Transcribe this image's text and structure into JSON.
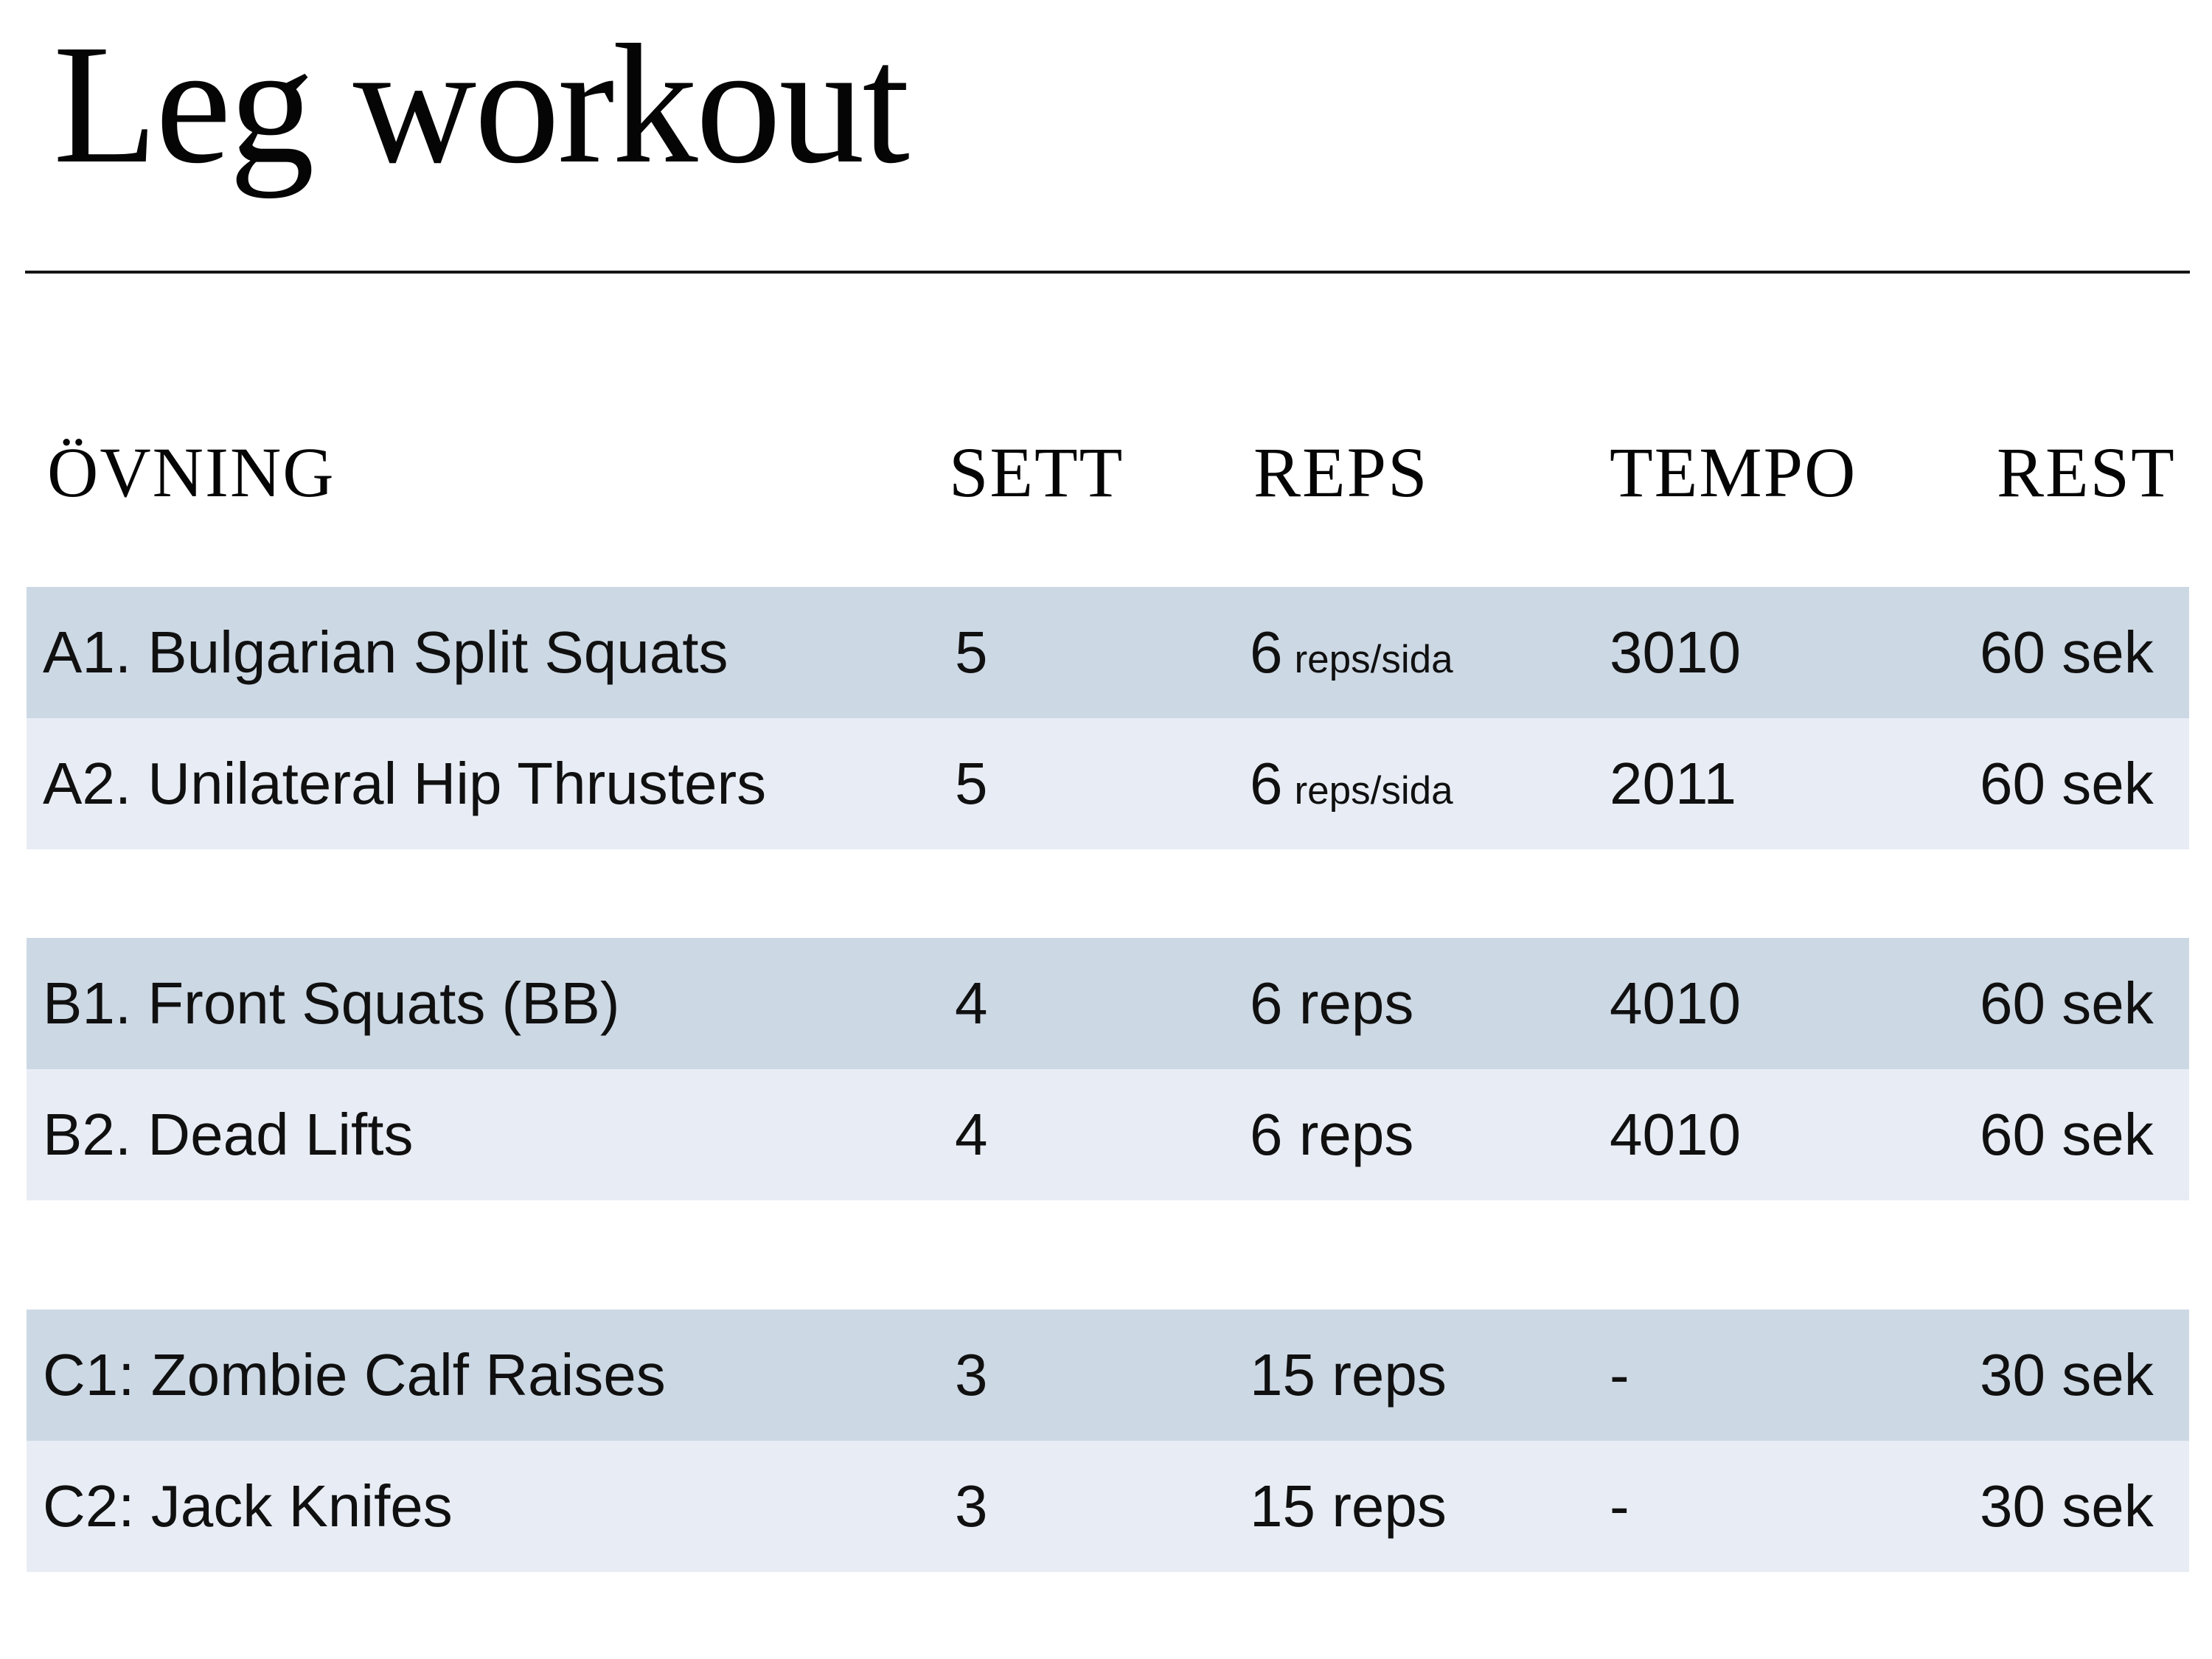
{
  "page": {
    "title": "Leg workout"
  },
  "table": {
    "headers": {
      "exercise": "ÖVNING",
      "sets": "SETT",
      "reps": "REPS",
      "tempo": "TEMPO",
      "rest": "REST"
    },
    "colors": {
      "row_dark": "#ccd8e4",
      "row_light": "#e8edf5"
    },
    "groups": [
      {
        "rows": [
          {
            "exercise": "A1. Bulgarian Split Squats",
            "sets": "5",
            "reps": "6",
            "reps_note": "reps/sida",
            "tempo": "3010",
            "rest": "60 sek"
          },
          {
            "exercise": "A2. Unilateral Hip Thrusters",
            "sets": "5",
            "reps": "6",
            "reps_note": "reps/sida",
            "tempo": "2011",
            "rest": "60 sek"
          }
        ]
      },
      {
        "rows": [
          {
            "exercise": "B1. Front Squats (BB)",
            "sets": "4",
            "reps": "6 reps",
            "reps_note": "",
            "tempo": "4010",
            "rest": "60 sek"
          },
          {
            "exercise": "B2. Dead Lifts",
            "sets": "4",
            "reps": "6 reps",
            "reps_note": "",
            "tempo": "4010",
            "rest": "60 sek"
          }
        ]
      },
      {
        "rows": [
          {
            "exercise": "C1: Zombie Calf Raises",
            "sets": "3",
            "reps": "15 reps",
            "reps_note": "",
            "tempo": "-",
            "rest": "30 sek"
          },
          {
            "exercise": "C2: Jack Knifes",
            "sets": "3",
            "reps": "15 reps",
            "reps_note": "",
            "tempo": "-",
            "rest": "30 sek"
          }
        ]
      }
    ]
  }
}
